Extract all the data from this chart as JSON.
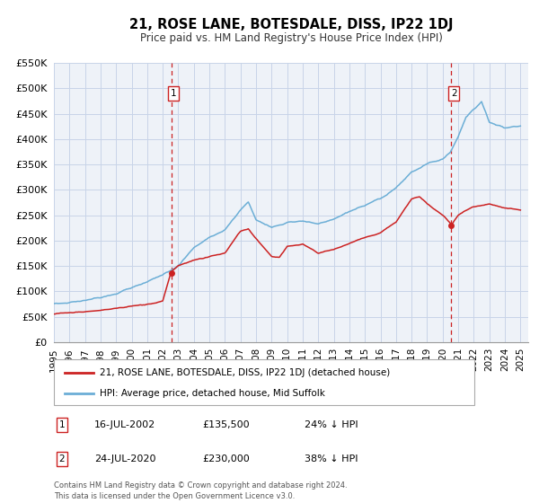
{
  "title": "21, ROSE LANE, BOTESDALE, DISS, IP22 1DJ",
  "subtitle": "Price paid vs. HM Land Registry's House Price Index (HPI)",
  "hpi_label": "HPI: Average price, detached house, Mid Suffolk",
  "price_label": "21, ROSE LANE, BOTESDALE, DISS, IP22 1DJ (detached house)",
  "sale1_date": "16-JUL-2002",
  "sale1_price": 135500,
  "sale1_price_str": "£135,500",
  "sale1_hpi_diff": "24% ↓ HPI",
  "sale1_year": 2002.54,
  "sale1_val": 135500,
  "sale2_date": "24-JUL-2020",
  "sale2_price": 230000,
  "sale2_price_str": "£230,000",
  "sale2_hpi_diff": "38% ↓ HPI",
  "sale2_year": 2020.56,
  "sale2_val": 230000,
  "hpi_color": "#6baed6",
  "price_color": "#cc2222",
  "vline_color": "#cc2222",
  "dot_color": "#cc2222",
  "grid_color": "#c8d4e8",
  "background_color": "#eef2f8",
  "ylim": [
    0,
    550000
  ],
  "xlim_start": 1995.0,
  "xlim_end": 2025.5,
  "yticks": [
    0,
    50000,
    100000,
    150000,
    200000,
    250000,
    300000,
    350000,
    400000,
    450000,
    500000,
    550000
  ],
  "ytick_labels": [
    "£0",
    "£50K",
    "£100K",
    "£150K",
    "£200K",
    "£250K",
    "£300K",
    "£350K",
    "£400K",
    "£450K",
    "£500K",
    "£550K"
  ],
  "xticks": [
    1995,
    1996,
    1997,
    1998,
    1999,
    2000,
    2001,
    2002,
    2003,
    2004,
    2005,
    2006,
    2007,
    2008,
    2009,
    2010,
    2011,
    2012,
    2013,
    2014,
    2015,
    2016,
    2017,
    2018,
    2019,
    2020,
    2021,
    2022,
    2023,
    2024,
    2025
  ],
  "footer": "Contains HM Land Registry data © Crown copyright and database right 2024.\nThis data is licensed under the Open Government Licence v3.0."
}
